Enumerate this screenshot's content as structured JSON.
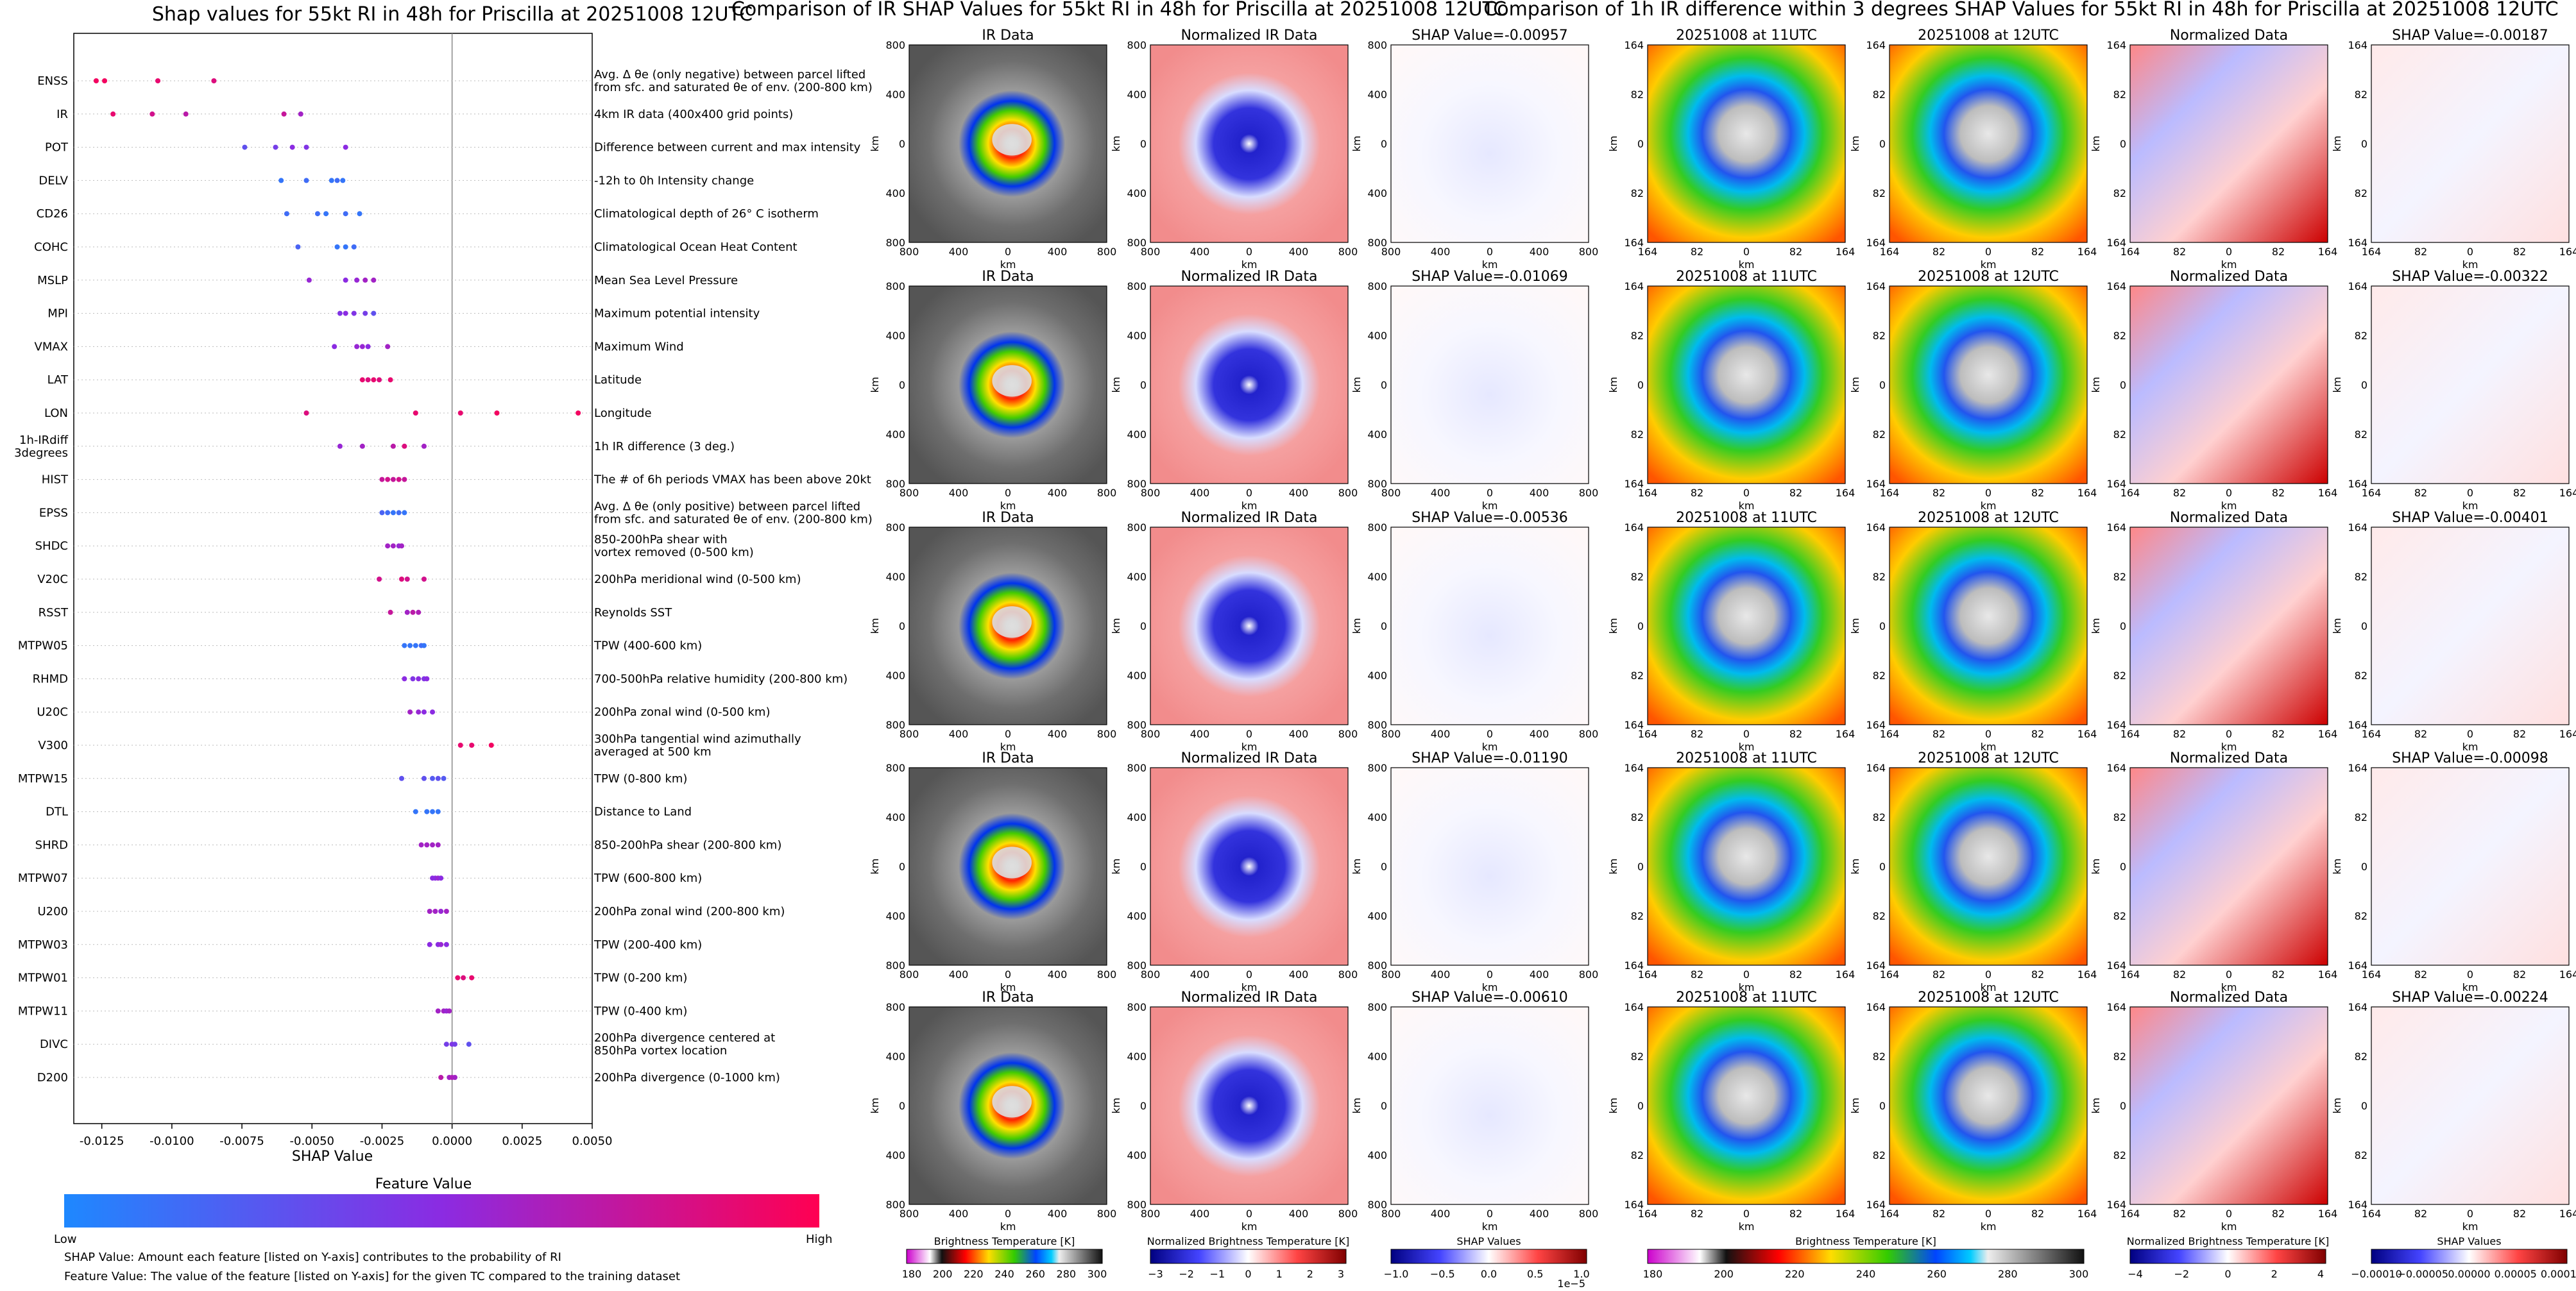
{
  "left_panel": {
    "title": "Shap values for 55kt RI in 48h for Priscilla at 20251008 12UTC",
    "xlabel": "SHAP Value",
    "colorbar_title": "Feature Value",
    "colorbar_low": "Low",
    "colorbar_high": "High",
    "footnote1": "SHAP Value: Amount each feature [listed on Y-axis] contributes to the probability of RI",
    "footnote2": "Feature Value: The value of the feature [listed on Y-axis] for the given TC compared to the training dataset",
    "colors": {
      "low": "#1e88ff",
      "mid": "#8b2be2",
      "high": "#ff0052"
    }
  },
  "chart_data": [
    {
      "type": "scatter",
      "title": "Shap values for 55kt RI in 48h for Priscilla at 20251008 12UTC",
      "xlabel": "SHAP Value",
      "xlim": [
        -0.0135,
        0.005
      ],
      "xticks": [
        "-0.0125",
        "-0.0100",
        "-0.0075",
        "-0.0050",
        "-0.0025",
        "0.0000",
        "0.0025",
        "0.0050"
      ],
      "xtick_values": [
        -0.0125,
        -0.01,
        -0.0075,
        -0.005,
        -0.0025,
        0,
        0.0025,
        0.005
      ],
      "features": [
        {
          "name": "ENSS",
          "desc": "Avg. Δ θe (only negative) between parcel lifted|from sfc. and saturated θe of env. (200-800 km)",
          "points": [
            [
              -0.0127,
              0.95
            ],
            [
              -0.0124,
              0.95
            ],
            [
              -0.0105,
              0.9
            ],
            [
              -0.0085,
              0.85
            ]
          ]
        },
        {
          "name": "IR",
          "desc": "4km IR data (400x400 grid points)",
          "points": [
            [
              -0.0121,
              0.9
            ],
            [
              -0.0107,
              0.8
            ],
            [
              -0.0095,
              0.7
            ],
            [
              -0.006,
              0.75
            ],
            [
              -0.0054,
              0.6
            ]
          ]
        },
        {
          "name": "POT",
          "desc": "Difference between current and max intensity",
          "points": [
            [
              -0.0074,
              0.3
            ],
            [
              -0.0063,
              0.4
            ],
            [
              -0.0057,
              0.5
            ],
            [
              -0.0052,
              0.45
            ],
            [
              -0.0038,
              0.5
            ]
          ]
        },
        {
          "name": "DELV",
          "desc": "-12h to 0h Intensity change",
          "points": [
            [
              -0.0061,
              0.1
            ],
            [
              -0.0052,
              0.15
            ],
            [
              -0.0043,
              0.1
            ],
            [
              -0.0041,
              0.15
            ],
            [
              -0.0039,
              0.1
            ]
          ]
        },
        {
          "name": "CD26",
          "desc": "Climatological depth of 26° C isotherm",
          "points": [
            [
              -0.0059,
              0.15
            ],
            [
              -0.0048,
              0.15
            ],
            [
              -0.0045,
              0.1
            ],
            [
              -0.0038,
              0.15
            ],
            [
              -0.0033,
              0.1
            ]
          ]
        },
        {
          "name": "COHC",
          "desc": "Climatological Ocean Heat Content",
          "points": [
            [
              -0.0055,
              0.2
            ],
            [
              -0.0041,
              0.1
            ],
            [
              -0.0038,
              0.1
            ],
            [
              -0.0035,
              0.15
            ]
          ]
        },
        {
          "name": "MSLP",
          "desc": "Mean Sea Level Pressure",
          "points": [
            [
              -0.0051,
              0.55
            ],
            [
              -0.0038,
              0.5
            ],
            [
              -0.0034,
              0.55
            ],
            [
              -0.0031,
              0.6
            ],
            [
              -0.0028,
              0.6
            ]
          ]
        },
        {
          "name": "MPI",
          "desc": "Maximum potential intensity",
          "points": [
            [
              -0.004,
              0.45
            ],
            [
              -0.0038,
              0.5
            ],
            [
              -0.0035,
              0.45
            ],
            [
              -0.0031,
              0.4
            ],
            [
              -0.0028,
              0.3
            ]
          ]
        },
        {
          "name": "VMAX",
          "desc": "Maximum Wind",
          "points": [
            [
              -0.0042,
              0.5
            ],
            [
              -0.0034,
              0.55
            ],
            [
              -0.0032,
              0.55
            ],
            [
              -0.003,
              0.5
            ],
            [
              -0.0023,
              0.6
            ]
          ]
        },
        {
          "name": "LAT",
          "desc": "Latitude",
          "points": [
            [
              -0.0032,
              0.9
            ],
            [
              -0.003,
              0.85
            ],
            [
              -0.0028,
              0.9
            ],
            [
              -0.0026,
              0.85
            ],
            [
              -0.0022,
              0.9
            ]
          ]
        },
        {
          "name": "LON",
          "desc": "Longitude",
          "points": [
            [
              -0.0052,
              0.85
            ],
            [
              -0.0013,
              0.9
            ],
            [
              0.0003,
              0.9
            ],
            [
              0.0016,
              0.95
            ],
            [
              0.0045,
              0.95
            ]
          ]
        },
        {
          "name": "1h-IRdiff|3degrees",
          "desc": "1h IR difference (3 deg.)",
          "points": [
            [
              -0.004,
              0.55
            ],
            [
              -0.0032,
              0.6
            ],
            [
              -0.0021,
              0.7
            ],
            [
              -0.0017,
              0.85
            ],
            [
              -0.001,
              0.6
            ]
          ]
        },
        {
          "name": "HIST",
          "desc": "The # of 6h periods VMAX has been above 20kt",
          "points": [
            [
              -0.0025,
              0.75
            ],
            [
              -0.0023,
              0.8
            ],
            [
              -0.0021,
              0.75
            ],
            [
              -0.0019,
              0.8
            ],
            [
              -0.0017,
              0.75
            ]
          ]
        },
        {
          "name": "EPSS",
          "desc": "Avg. Δ θe (only positive) between parcel lifted|from sfc. and saturated θe of env. (200-800 km)",
          "points": [
            [
              -0.0025,
              0.2
            ],
            [
              -0.0023,
              0.15
            ],
            [
              -0.0021,
              0.1
            ],
            [
              -0.0019,
              0.15
            ],
            [
              -0.0017,
              0.1
            ]
          ]
        },
        {
          "name": "SHDC",
          "desc": "850-200hPa shear with|vortex removed (0-500 km)",
          "points": [
            [
              -0.0023,
              0.6
            ],
            [
              -0.0021,
              0.6
            ],
            [
              -0.0019,
              0.55
            ],
            [
              -0.0018,
              0.6
            ]
          ]
        },
        {
          "name": "V20C",
          "desc": "200hPa meridional wind (0-500 km)",
          "points": [
            [
              -0.0026,
              0.8
            ],
            [
              -0.0018,
              0.85
            ],
            [
              -0.0016,
              0.8
            ],
            [
              -0.001,
              0.8
            ]
          ]
        },
        {
          "name": "RSST",
          "desc": "Reynolds SST",
          "points": [
            [
              -0.0022,
              0.75
            ],
            [
              -0.0016,
              0.6
            ],
            [
              -0.0014,
              0.7
            ],
            [
              -0.0012,
              0.65
            ]
          ]
        },
        {
          "name": "MTPW05",
          "desc": "TPW (400-600 km)",
          "points": [
            [
              -0.0017,
              0.1
            ],
            [
              -0.0015,
              0.1
            ],
            [
              -0.0013,
              0.1
            ],
            [
              -0.0011,
              0.15
            ],
            [
              -0.001,
              0.1
            ]
          ]
        },
        {
          "name": "RHMD",
          "desc": "700-500hPa relative humidity (200-800 km)",
          "points": [
            [
              -0.0017,
              0.5
            ],
            [
              -0.0014,
              0.45
            ],
            [
              -0.0012,
              0.5
            ],
            [
              -0.001,
              0.45
            ],
            [
              -0.0009,
              0.5
            ]
          ]
        },
        {
          "name": "U20C",
          "desc": "200hPa zonal wind (0-500 km)",
          "points": [
            [
              -0.0015,
              0.6
            ],
            [
              -0.0012,
              0.55
            ],
            [
              -0.001,
              0.5
            ],
            [
              -0.0007,
              0.5
            ]
          ]
        },
        {
          "name": "V300",
          "desc": "300hPa tangential wind azimuthally|averaged at 500 km",
          "points": [
            [
              0.0003,
              0.9
            ],
            [
              0.0007,
              0.9
            ],
            [
              0.0014,
              0.95
            ]
          ]
        },
        {
          "name": "MTPW15",
          "desc": "TPW (0-800 km)",
          "points": [
            [
              -0.0018,
              0.3
            ],
            [
              -0.001,
              0.3
            ],
            [
              -0.0007,
              0.25
            ],
            [
              -0.0005,
              0.3
            ],
            [
              -0.0003,
              0.25
            ]
          ]
        },
        {
          "name": "DTL",
          "desc": "Distance to Land",
          "points": [
            [
              -0.0013,
              0.1
            ],
            [
              -0.0009,
              0.1
            ],
            [
              -0.0007,
              0.1
            ],
            [
              -0.0005,
              0.1
            ]
          ]
        },
        {
          "name": "SHRD",
          "desc": "850-200hPa shear (200-800 km)",
          "points": [
            [
              -0.0011,
              0.6
            ],
            [
              -0.0009,
              0.6
            ],
            [
              -0.0007,
              0.6
            ],
            [
              -0.0005,
              0.6
            ]
          ]
        },
        {
          "name": "MTPW07",
          "desc": "TPW (600-800 km)",
          "points": [
            [
              -0.0007,
              0.5
            ],
            [
              -0.0006,
              0.5
            ],
            [
              -0.0005,
              0.55
            ],
            [
              -0.0004,
              0.5
            ]
          ]
        },
        {
          "name": "U200",
          "desc": "200hPa zonal wind (200-800 km)",
          "points": [
            [
              -0.0008,
              0.6
            ],
            [
              -0.0006,
              0.6
            ],
            [
              -0.0004,
              0.55
            ],
            [
              -0.0002,
              0.6
            ]
          ]
        },
        {
          "name": "MTPW03",
          "desc": "TPW (200-400 km)",
          "points": [
            [
              -0.0008,
              0.5
            ],
            [
              -0.0005,
              0.5
            ],
            [
              -0.0004,
              0.55
            ],
            [
              -0.0002,
              0.5
            ]
          ]
        },
        {
          "name": "MTPW01",
          "desc": "TPW (0-200 km)",
          "points": [
            [
              0.0002,
              0.9
            ],
            [
              0.0004,
              0.85
            ],
            [
              0.0007,
              0.9
            ]
          ]
        },
        {
          "name": "MTPW11",
          "desc": "TPW (0-400 km)",
          "points": [
            [
              -0.0005,
              0.6
            ],
            [
              -0.0003,
              0.6
            ],
            [
              -0.0002,
              0.55
            ],
            [
              -0.0001,
              0.6
            ]
          ]
        },
        {
          "name": "DIVC",
          "desc": "200hPa divergence centered at|850hPa vortex location",
          "points": [
            [
              -0.0002,
              0.4
            ],
            [
              0.0,
              0.45
            ],
            [
              0.0001,
              0.4
            ],
            [
              0.0006,
              0.3
            ]
          ]
        },
        {
          "name": "D200",
          "desc": "200hPa divergence (0-1000 km)",
          "points": [
            [
              -0.0004,
              0.7
            ],
            [
              -0.0001,
              0.6
            ],
            [
              0.0,
              0.65
            ],
            [
              0.0001,
              0.6
            ]
          ]
        }
      ]
    },
    {
      "type": "heatmap",
      "title": "Comparison of IR SHAP Values for 55kt RI in 48h for Priscilla at 20251008 12UTC",
      "panel_titles": [
        "IR Data",
        "Normalized IR Data",
        "SHAP Value"
      ],
      "shap_values": [
        "-0.00957",
        "-0.01069",
        "-0.00536",
        "-0.01190",
        "-0.00610"
      ],
      "xlabel": "km",
      "ylabel": "km",
      "ticks": [
        "800",
        "400",
        "0",
        "400",
        "800"
      ],
      "colorbars": [
        {
          "label": "Brightness Temperature [K]",
          "ticks": [
            "180",
            "200",
            "220",
            "240",
            "260",
            "280",
            "300"
          ]
        },
        {
          "label": "Normalized Brightness Temperature [K]",
          "ticks": [
            "−3",
            "−2",
            "−1",
            "0",
            "1",
            "2",
            "3"
          ]
        },
        {
          "label": "SHAP Values",
          "ticks": [
            "−1.0",
            "−0.5",
            "0.0",
            "0.5",
            "1.0"
          ],
          "scale": "1e−5"
        }
      ]
    },
    {
      "type": "heatmap",
      "title": "Comparison of 1h IR difference within 3 degrees SHAP Values for 55kt RI in 48h for Priscilla at 20251008 12UTC",
      "panel_titles": [
        "20251008 at 11UTC",
        "20251008 at 12UTC",
        "Normalized Data",
        "SHAP Value"
      ],
      "shap_values": [
        "-0.00187",
        "-0.00322",
        "-0.00401",
        "-0.00098",
        "-0.00224"
      ],
      "xlabel": "km",
      "ylabel": "km",
      "ticks": [
        "164",
        "82",
        "0",
        "82",
        "164"
      ],
      "colorbars": [
        {
          "label": "Brightness Temperature [K]",
          "ticks": [
            "180",
            "200",
            "220",
            "240",
            "260",
            "280",
            "300"
          ]
        },
        {
          "label": "Normalized Brightness Temperature [K]",
          "ticks": [
            "−4",
            "−2",
            "0",
            "2",
            "4"
          ]
        },
        {
          "label": "SHAP Values",
          "ticks": [
            "−0.00010",
            "−0.00005",
            "0.00000",
            "0.00005",
            "0.00010"
          ]
        }
      ]
    }
  ]
}
